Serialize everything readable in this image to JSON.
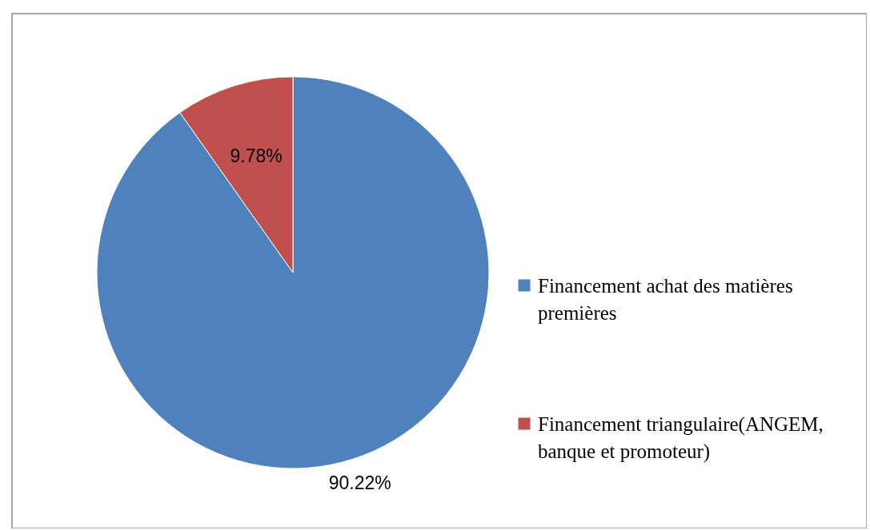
{
  "chart_data": {
    "type": "pie",
    "categories": [
      "Financement achat des matières premières",
      "Financement triangulaire(ANGEM, banque et promoteur)"
    ],
    "values": [
      90.22,
      9.78
    ],
    "colors": [
      "#4f81bd",
      "#c0504d"
    ],
    "value_labels": [
      "90.22%",
      "9.78%"
    ],
    "legend": "right"
  }
}
